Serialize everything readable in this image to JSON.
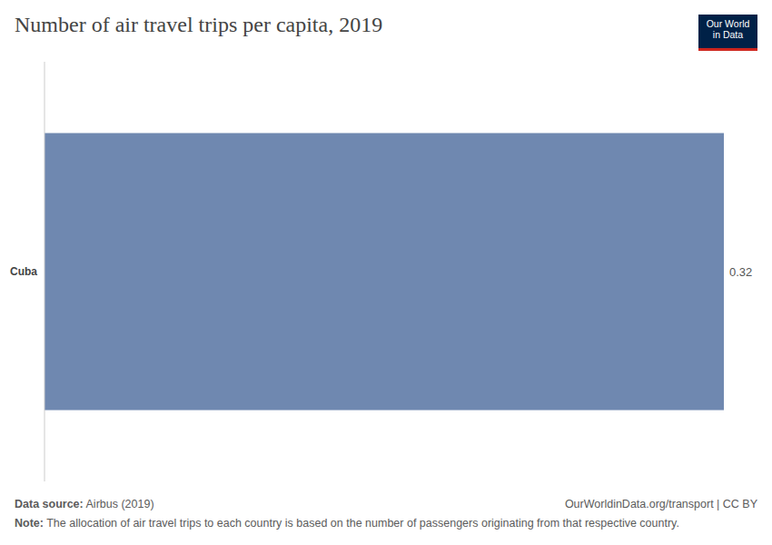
{
  "chart_data": {
    "type": "bar",
    "title": "Number of air travel trips per capita, 2019",
    "orientation": "horizontal",
    "categories": [
      "Cuba"
    ],
    "values": [
      0.32
    ],
    "color": "#6f88b0",
    "xlim": [
      0,
      0.32
    ],
    "data_labels": true,
    "tick_labels": "y",
    "grid": false
  },
  "logo": [
    "Our World",
    "in Data"
  ],
  "footer": {
    "source_label": "Data source:",
    "source": "Airbus (2019)",
    "credit": "OurWorldinData.org/transport | CC BY",
    "note_label": "Note:",
    "note": "The allocation of air travel trips to each country is based on the number of passengers originating from that respective country."
  }
}
